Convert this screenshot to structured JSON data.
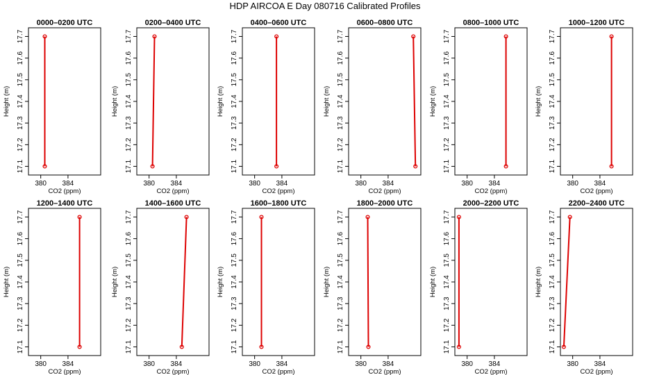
{
  "title": "HDP AIRCOA E  Day 080716  Calibrated Profiles",
  "colors": {
    "profile": "#dd0000",
    "axis": "#000000"
  },
  "chart_data": [
    {
      "type": "line",
      "title": "0000–0200 UTC",
      "xlabel": "CO2 (ppm)",
      "ylabel": "Height (m)",
      "xlim": [
        378.2,
        388.8
      ],
      "ylim": [
        17.06,
        17.74
      ],
      "xticks": [
        380,
        384
      ],
      "yticks": [
        17.1,
        17.2,
        17.3,
        17.4,
        17.5,
        17.6,
        17.7
      ],
      "grid": false,
      "series": [
        {
          "x": [
            380.6,
            380.6
          ],
          "y": [
            17.1,
            17.7
          ]
        }
      ]
    },
    {
      "type": "line",
      "title": "0200–0400 UTC",
      "xlabel": "CO2 (ppm)",
      "ylabel": "Height (m)",
      "xlim": [
        378.2,
        388.8
      ],
      "ylim": [
        17.06,
        17.74
      ],
      "xticks": [
        380,
        384
      ],
      "yticks": [
        17.1,
        17.2,
        17.3,
        17.4,
        17.5,
        17.6,
        17.7
      ],
      "grid": false,
      "series": [
        {
          "x": [
            380.5,
            380.8
          ],
          "y": [
            17.1,
            17.7
          ]
        }
      ]
    },
    {
      "type": "line",
      "title": "0400–0600 UTC",
      "xlabel": "CO2 (ppm)",
      "ylabel": "Height (m)",
      "xlim": [
        378.2,
        388.8
      ],
      "ylim": [
        17.06,
        17.74
      ],
      "xticks": [
        380,
        384
      ],
      "yticks": [
        17.1,
        17.2,
        17.3,
        17.4,
        17.5,
        17.6,
        17.7
      ],
      "grid": false,
      "series": [
        {
          "x": [
            383.2,
            383.2
          ],
          "y": [
            17.1,
            17.7
          ]
        }
      ]
    },
    {
      "type": "line",
      "title": "0600–0800 UTC",
      "xlabel": "CO2 (ppm)",
      "ylabel": "Height (m)",
      "xlim": [
        378.2,
        388.8
      ],
      "ylim": [
        17.06,
        17.74
      ],
      "xticks": [
        380,
        384
      ],
      "yticks": [
        17.1,
        17.2,
        17.3,
        17.4,
        17.5,
        17.6,
        17.7
      ],
      "grid": false,
      "series": [
        {
          "x": [
            388.0,
            387.7
          ],
          "y": [
            17.1,
            17.7
          ]
        }
      ]
    },
    {
      "type": "line",
      "title": "0800–1000 UTC",
      "xlabel": "CO2 (ppm)",
      "ylabel": "Height (m)",
      "xlim": [
        378.2,
        388.8
      ],
      "ylim": [
        17.06,
        17.74
      ],
      "xticks": [
        380,
        384
      ],
      "yticks": [
        17.1,
        17.2,
        17.3,
        17.4,
        17.5,
        17.6,
        17.7
      ],
      "grid": false,
      "series": [
        {
          "x": [
            385.7,
            385.7
          ],
          "y": [
            17.1,
            17.7
          ]
        }
      ]
    },
    {
      "type": "line",
      "title": "1000–1200 UTC",
      "xlabel": "CO2 (ppm)",
      "ylabel": "Height (m)",
      "xlim": [
        378.2,
        388.8
      ],
      "ylim": [
        17.06,
        17.74
      ],
      "xticks": [
        380,
        384
      ],
      "yticks": [
        17.1,
        17.2,
        17.3,
        17.4,
        17.5,
        17.6,
        17.7
      ],
      "grid": false,
      "series": [
        {
          "x": [
            385.7,
            385.7
          ],
          "y": [
            17.1,
            17.7
          ]
        }
      ]
    },
    {
      "type": "line",
      "title": "1200–1400 UTC",
      "xlabel": "CO2 (ppm)",
      "ylabel": "Height (m)",
      "xlim": [
        378.2,
        388.8
      ],
      "ylim": [
        17.06,
        17.74
      ],
      "xticks": [
        380,
        384
      ],
      "yticks": [
        17.1,
        17.2,
        17.3,
        17.4,
        17.5,
        17.6,
        17.7
      ],
      "grid": false,
      "series": [
        {
          "x": [
            385.7,
            385.7
          ],
          "y": [
            17.1,
            17.7
          ]
        }
      ]
    },
    {
      "type": "line",
      "title": "1400–1600 UTC",
      "xlabel": "CO2 (ppm)",
      "ylabel": "Height (m)",
      "xlim": [
        378.2,
        388.8
      ],
      "ylim": [
        17.06,
        17.74
      ],
      "xticks": [
        380,
        384
      ],
      "yticks": [
        17.1,
        17.2,
        17.3,
        17.4,
        17.5,
        17.6,
        17.7
      ],
      "grid": false,
      "series": [
        {
          "x": [
            384.8,
            385.5
          ],
          "y": [
            17.1,
            17.7
          ]
        }
      ]
    },
    {
      "type": "line",
      "title": "1600–1800 UTC",
      "xlabel": "CO2 (ppm)",
      "ylabel": "Height (m)",
      "xlim": [
        378.2,
        388.8
      ],
      "ylim": [
        17.06,
        17.74
      ],
      "xticks": [
        380,
        384
      ],
      "yticks": [
        17.1,
        17.2,
        17.3,
        17.4,
        17.5,
        17.6,
        17.7
      ],
      "grid": false,
      "series": [
        {
          "x": [
            381.0,
            381.0
          ],
          "y": [
            17.1,
            17.7
          ]
        }
      ]
    },
    {
      "type": "line",
      "title": "1800–2000 UTC",
      "xlabel": "CO2 (ppm)",
      "ylabel": "Height (m)",
      "xlim": [
        378.2,
        388.8
      ],
      "ylim": [
        17.06,
        17.74
      ],
      "xticks": [
        380,
        384
      ],
      "yticks": [
        17.1,
        17.2,
        17.3,
        17.4,
        17.5,
        17.6,
        17.7
      ],
      "grid": false,
      "series": [
        {
          "x": [
            381.1,
            381.0
          ],
          "y": [
            17.1,
            17.7
          ]
        }
      ]
    },
    {
      "type": "line",
      "title": "2000–2200 UTC",
      "xlabel": "CO2 (ppm)",
      "ylabel": "Height (m)",
      "xlim": [
        378.2,
        388.8
      ],
      "ylim": [
        17.06,
        17.74
      ],
      "xticks": [
        380,
        384
      ],
      "yticks": [
        17.1,
        17.2,
        17.3,
        17.4,
        17.5,
        17.6,
        17.7
      ],
      "grid": false,
      "series": [
        {
          "x": [
            378.8,
            378.8
          ],
          "y": [
            17.1,
            17.7
          ]
        }
      ]
    },
    {
      "type": "line",
      "title": "2200–2400 UTC",
      "xlabel": "CO2 (ppm)",
      "ylabel": "Height (m)",
      "xlim": [
        378.2,
        388.8
      ],
      "ylim": [
        17.06,
        17.74
      ],
      "xticks": [
        380,
        384
      ],
      "yticks": [
        17.1,
        17.2,
        17.3,
        17.4,
        17.5,
        17.6,
        17.7
      ],
      "grid": false,
      "series": [
        {
          "x": [
            378.7,
            379.6
          ],
          "y": [
            17.1,
            17.7
          ]
        }
      ]
    }
  ]
}
